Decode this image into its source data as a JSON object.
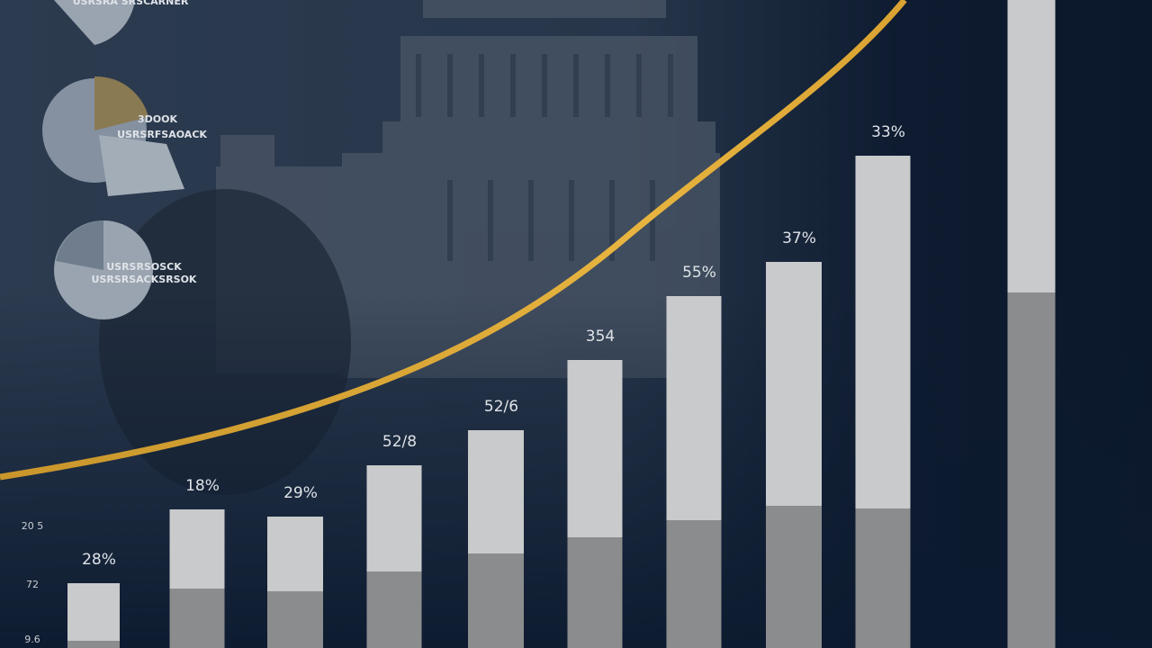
{
  "chart_data": {
    "type": "stacked_bar",
    "series": [
      {
        "color": "#8b8c8e",
        "values": [
          8,
          66,
          63,
          85,
          105,
          123,
          142,
          158,
          155,
          395
        ]
      },
      {
        "color": "#c9cacc",
        "values": [
          64,
          88,
          83,
          118,
          137,
          197,
          249,
          271,
          392,
          325
        ]
      }
    ],
    "labels": [
      "28%",
      "18%",
      "29%",
      "52/8",
      "52/6",
      "354",
      "55%",
      "37%",
      "33%",
      null
    ],
    "ylim": [
      0,
      720
    ],
    "side_labels": [
      "20 5",
      "72",
      "9.6"
    ],
    "pie_texts": [
      "USRSRA SRSCARNER",
      "3DOOK",
      "USRSRFSAOACK",
      "USRSRSOSCK",
      "USRSRSACKSRSOK"
    ]
  }
}
